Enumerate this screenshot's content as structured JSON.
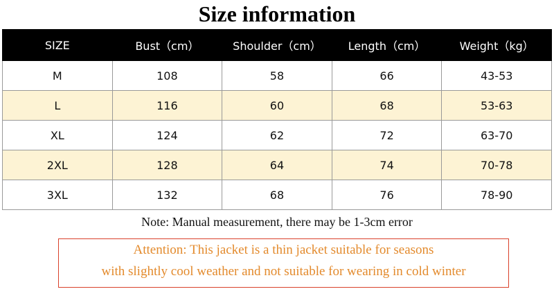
{
  "header": {
    "title": "Size information"
  },
  "table": {
    "columns": [
      "SIZE",
      "Bust（cm）",
      "Shoulder（cm）",
      "Length（cm）",
      "Weight（kg）"
    ],
    "rows": [
      [
        "M",
        "108",
        "58",
        "66",
        "43-53"
      ],
      [
        "L",
        "116",
        "60",
        "68",
        "53-63"
      ],
      [
        "XL",
        "124",
        "62",
        "72",
        "63-70"
      ],
      [
        "2XL",
        "128",
        "64",
        "74",
        "70-78"
      ],
      [
        "3XL",
        "132",
        "68",
        "76",
        "78-90"
      ]
    ]
  },
  "note": "Note: Manual measurement, there may be 1-3cm error",
  "attention": {
    "lines": [
      "Attention: This jacket is a thin jacket suitable for seasons",
      "with slightly cool weather and not suitable for wearing in cold winter"
    ]
  }
}
